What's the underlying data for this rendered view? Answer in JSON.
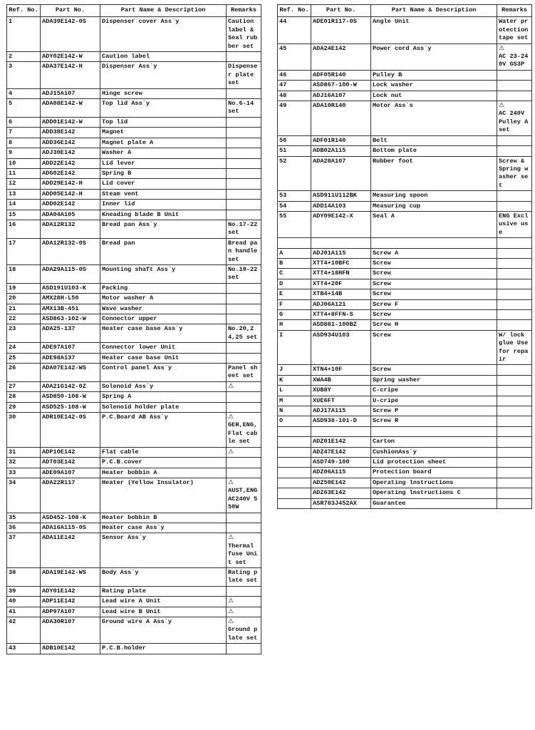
{
  "headers": {
    "ref": "Ref. No.",
    "part": "Part No.",
    "name": "Part Name & Description",
    "remarks": "Remarks"
  },
  "caution_icon": "warning-triangle-icon",
  "left_rows": [
    {
      "ref": "1",
      "part": "ADA39E142-0S",
      "name": "Dispenser cover Ass´y",
      "remarks": "Caution label & Seal rubber set"
    },
    {
      "ref": "2",
      "part": "ADY02E142-W",
      "name": "Caution label",
      "remarks": ""
    },
    {
      "ref": "3",
      "part": "ADA37E142-H",
      "name": "Dispenser Ass´y",
      "remarks": "Dispenser plate set"
    },
    {
      "ref": "4",
      "part": "ADJ15A107",
      "name": "Hinge screw",
      "remarks": ""
    },
    {
      "ref": "5",
      "part": "ADA08E142-W",
      "name": "Top lid Ass´y",
      "remarks": "No.6-14 set"
    },
    {
      "ref": "6",
      "part": "ADD01E142-W",
      "name": "Top lid",
      "remarks": ""
    },
    {
      "ref": "7",
      "part": "ADD38E142",
      "name": "Magnet",
      "remarks": ""
    },
    {
      "ref": "8",
      "part": "ADD36E142",
      "name": "Magnet plate A",
      "remarks": ""
    },
    {
      "ref": "9",
      "part": "ADJ30E142",
      "name": "Washer A",
      "remarks": ""
    },
    {
      "ref": "10",
      "part": "ADD22E142",
      "name": "Lid lever",
      "remarks": ""
    },
    {
      "ref": "11",
      "part": "ADG02E142",
      "name": "Spring B",
      "remarks": ""
    },
    {
      "ref": "12",
      "part": "ADD29E142-H",
      "name": "Lid cover",
      "remarks": ""
    },
    {
      "ref": "13",
      "part": "ADD05E142-H",
      "name": "Steam vent",
      "remarks": ""
    },
    {
      "ref": "14",
      "part": "ADD02E142",
      "name": "Inner lid",
      "remarks": ""
    },
    {
      "ref": "15",
      "part": "ADA04A105",
      "name": "Kneading blade B Unit",
      "remarks": ""
    },
    {
      "ref": "16",
      "part": "ADA12R132",
      "name": "Bread pan Ass´y",
      "remarks": "No.17-22 set"
    },
    {
      "ref": "17",
      "part": "ADA12R132-0S",
      "name": "Bread pan",
      "remarks": "Bread pan handle set"
    },
    {
      "ref": "18",
      "part": "ADA29A115-0S",
      "name": "Mounting shaft Ass´y",
      "remarks": "No.19-22 set"
    },
    {
      "ref": "19",
      "part": "ASD191U103-K",
      "name": "Packing",
      "remarks": ""
    },
    {
      "ref": "20",
      "part": "AMX28H-L50",
      "name": "Motor washer A",
      "remarks": ""
    },
    {
      "ref": "21",
      "part": "AMX13B-451",
      "name": "Wave washer",
      "remarks": ""
    },
    {
      "ref": "22",
      "part": "ASD863-102-W",
      "name": "Connector upper",
      "remarks": ""
    },
    {
      "ref": "23",
      "part": "ADA25-137",
      "name": "Heater case base Ass´y",
      "remarks": "No.20,24,25 set"
    },
    {
      "ref": "24",
      "part": "ADE97A107",
      "name": "Connector lower Unit",
      "remarks": ""
    },
    {
      "ref": "25",
      "part": "ADE98A137",
      "name": "Heater case base Unit",
      "remarks": ""
    },
    {
      "ref": "26",
      "part": "ADA07E142-WS",
      "name": "Control panel Ass´y",
      "remarks": "Panel sheet set"
    },
    {
      "ref": "27",
      "part": "ADA21G142-0Z",
      "name": "Solenoid Ass´y",
      "remarks": "",
      "caution": true
    },
    {
      "ref": "28",
      "part": "ASD850-108-W",
      "name": "Spring A",
      "remarks": ""
    },
    {
      "ref": "29",
      "part": "ASD525-108-W",
      "name": "Solenoid holder plate",
      "remarks": ""
    },
    {
      "ref": "30",
      "part": "ADR10E142-0S",
      "name": "P.C.Board AB Ass´y",
      "remarks": "GER,ENG, Flat cable set",
      "caution": true
    },
    {
      "ref": "31",
      "part": "ADP10E142",
      "name": "Flat cable",
      "remarks": "",
      "caution": true
    },
    {
      "ref": "32",
      "part": "ADT03E142",
      "name": "P.C.B.cover",
      "remarks": ""
    },
    {
      "ref": "33",
      "part": "ADE09A107",
      "name": "Heater bobbin A",
      "remarks": ""
    },
    {
      "ref": "34",
      "part": "ADA22R117",
      "name": "Heater (Yellow Insulator)",
      "remarks": "AUST,ENG AC240V 550W",
      "caution": true
    },
    {
      "ref": "35",
      "part": "ASD452-108-K",
      "name": "Heater bobbin B",
      "remarks": ""
    },
    {
      "ref": "36",
      "part": "ADA16A115-0S",
      "name": "Heater case Ass´y",
      "remarks": ""
    },
    {
      "ref": "37",
      "part": "ADA11E142",
      "name": "Sensor Ass´y",
      "remarks": "Thermal fuse Unit set",
      "caution": true
    },
    {
      "ref": "38",
      "part": "ADA19E142-WS",
      "name": "Body Ass´y",
      "remarks": "Rating plate set"
    },
    {
      "ref": "39",
      "part": "ADY01E142",
      "name": "Rating plate",
      "remarks": ""
    },
    {
      "ref": "40",
      "part": "ADP11E142",
      "name": "Lead wire A Unit",
      "remarks": "",
      "caution": true
    },
    {
      "ref": "41",
      "part": "ADP97A107",
      "name": "Lead wire B Unit",
      "remarks": "",
      "caution": true
    },
    {
      "ref": "42",
      "part": "ADA30R107",
      "name": "Ground wire A Ass´y",
      "remarks": "Ground plate set",
      "caution": true
    },
    {
      "ref": "43",
      "part": "ADB10E142",
      "name": "P.C.B.holder",
      "remarks": ""
    }
  ],
  "right_rows": [
    {
      "ref": "44",
      "part": "ADE01R117-0S",
      "name": "Angle Unit",
      "remarks": "Water protection tape set"
    },
    {
      "ref": "45",
      "part": "ADA24E142",
      "name": "Power cord Ass´y",
      "remarks": "AC 23-240V GS3P",
      "caution": true
    },
    {
      "ref": "46",
      "part": "ADF05R140",
      "name": "Pulley B",
      "remarks": ""
    },
    {
      "ref": "47",
      "part": "ASD867-100-W",
      "name": "Lock washer",
      "remarks": ""
    },
    {
      "ref": "48",
      "part": "ADJ16A107",
      "name": "Lock nut",
      "remarks": ""
    },
    {
      "ref": "49",
      "part": "ADA10R140",
      "name": "Motor Ass´s",
      "remarks": "AC 240V Pulley A set",
      "caution": true
    },
    {
      "ref": "50",
      "part": "ADF01R140",
      "name": "Belt",
      "remarks": ""
    },
    {
      "ref": "51",
      "part": "ADB02A115",
      "name": "Bottom plate",
      "remarks": ""
    },
    {
      "ref": "52",
      "part": "ADA28A107",
      "name": "Rubber foot",
      "remarks": "Screw & Spring washer set"
    },
    {
      "ref": "53",
      "part": "ASD911U112BK",
      "name": "Measuring spoon",
      "remarks": ""
    },
    {
      "ref": "54",
      "part": "ADD14A103",
      "name": "Measuring cup",
      "remarks": ""
    },
    {
      "ref": "55",
      "part": "ADY09E142-X",
      "name": "Seal A",
      "remarks": "ENG Exclusive use"
    },
    {
      "ref": "",
      "part": "",
      "name": "",
      "remarks": ""
    },
    {
      "ref": "A",
      "part": "ADJ01A115",
      "name": "Screw A",
      "remarks": ""
    },
    {
      "ref": "B",
      "part": "XTT4+10BFC",
      "name": "Screw",
      "remarks": ""
    },
    {
      "ref": "C",
      "part": "XTT4+18HFN",
      "name": "Screw",
      "remarks": ""
    },
    {
      "ref": "D",
      "part": "XTT4+20F",
      "name": "Screw",
      "remarks": ""
    },
    {
      "ref": "E",
      "part": "XTB4+14B",
      "name": "Screw",
      "remarks": ""
    },
    {
      "ref": "F",
      "part": "ADJ06A121",
      "name": "Screw F",
      "remarks": ""
    },
    {
      "ref": "G",
      "part": "XTT4+8FFN-S",
      "name": "Screw",
      "remarks": ""
    },
    {
      "ref": "H",
      "part": "ASD881-100BZ",
      "name": "Screw H",
      "remarks": ""
    },
    {
      "ref": "I",
      "part": "ASD934U103",
      "name": "Screw",
      "remarks": "W/ lock glue Use for repair"
    },
    {
      "ref": "J",
      "part": "XTN4+10F",
      "name": "Screw",
      "remarks": ""
    },
    {
      "ref": "K",
      "part": "XWA4B",
      "name": "Spring washer",
      "remarks": ""
    },
    {
      "ref": "L",
      "part": "XUB8Y",
      "name": "C-cripe",
      "remarks": ""
    },
    {
      "ref": "M",
      "part": "XUE6FT",
      "name": "U-cripe",
      "remarks": ""
    },
    {
      "ref": "N",
      "part": "ADJ17A115",
      "name": "Screw P",
      "remarks": ""
    },
    {
      "ref": "O",
      "part": "ASD938-101-D",
      "name": "Screw R",
      "remarks": ""
    },
    {
      "ref": "",
      "part": "",
      "name": "",
      "remarks": ""
    },
    {
      "ref": "",
      "part": "ADZ01E142",
      "name": "Carton",
      "remarks": ""
    },
    {
      "ref": "",
      "part": "ADZ47E142",
      "name": "CushionAss´y",
      "remarks": ""
    },
    {
      "ref": "",
      "part": "ASD749-100",
      "name": "Lid protection sheet",
      "remarks": ""
    },
    {
      "ref": "",
      "part": "ADZ06A115",
      "name": "Protection board",
      "remarks": ""
    },
    {
      "ref": "",
      "part": "ADZ50E142",
      "name": "Operating lnstructions",
      "remarks": ""
    },
    {
      "ref": "",
      "part": "ADZ63E142",
      "name": "Operating lnstructions C",
      "remarks": ""
    },
    {
      "ref": "",
      "part": "ASR783J452AX",
      "name": "Guarantee",
      "remarks": ""
    }
  ]
}
